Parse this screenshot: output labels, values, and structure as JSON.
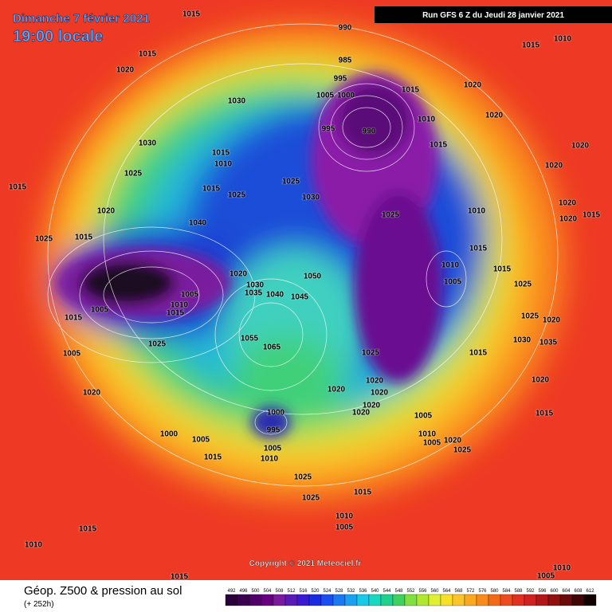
{
  "header": {
    "date": "Dimanche 7 février 2021",
    "time": "19:00 locale",
    "run": "Run GFS 6 Z du Jeudi 28 janvier 2021"
  },
  "footer": {
    "title": "Géop. Z500 & pression au sol",
    "lead": "(+ 252h)",
    "copyright": "Copyright © 2021 Meteociel.fr"
  },
  "scale": {
    "labels": [
      492,
      496,
      500,
      504,
      508,
      512,
      516,
      520,
      524,
      528,
      532,
      536,
      540,
      544,
      548,
      552,
      556,
      560,
      564,
      568,
      572,
      576,
      580,
      584,
      588,
      592,
      596,
      600,
      604,
      608,
      612
    ]
  },
  "isobars": [
    1015,
    1015,
    1020,
    1030,
    1030,
    1015,
    1025,
    1025,
    1020,
    1015,
    1040,
    1025,
    1015,
    1015,
    1010,
    1025,
    1030,
    990,
    985,
    995,
    1005,
    1000,
    995,
    990,
    1015,
    1010,
    1015,
    1025,
    1010,
    1010,
    1005,
    1015,
    1015,
    1025,
    1020,
    1020,
    1020,
    1020,
    1010,
    1015,
    1020,
    1020,
    1015,
    1025,
    1020,
    1030,
    1035,
    1015,
    1020,
    1015,
    1020,
    1020,
    1020,
    1020,
    1020,
    1005,
    1010,
    1005,
    1020,
    1025,
    1020,
    1005,
    1025,
    1015,
    1010,
    1005,
    1005,
    1015,
    1020,
    1030,
    1035,
    1040,
    1045,
    1050,
    1055,
    1065,
    1025,
    1000,
    995,
    1000,
    1005,
    1015,
    1005,
    1010,
    1025,
    1025,
    1015,
    1005,
    1010,
    1015,
    1010,
    1015,
    1020,
    1010,
    1005
  ]
}
